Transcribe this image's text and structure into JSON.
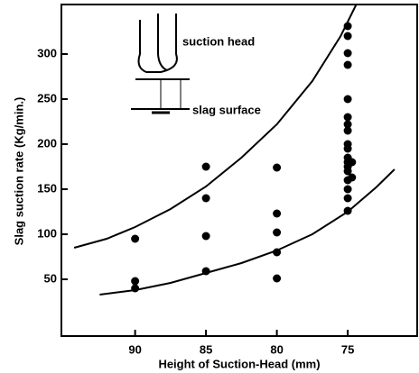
{
  "chart_data": {
    "type": "scatter",
    "x_label": "Height of Suction-Head (mm)",
    "y_label": "Slag suction rate (Kg/min.)",
    "annotations": [
      "suction head",
      "slag surface"
    ],
    "xlim": [
      95.2,
      70.1
    ],
    "xticks": [
      90,
      85,
      80,
      75
    ],
    "ylim": [
      -13,
      355
    ],
    "yticks": [
      50,
      100,
      150,
      200,
      250,
      300
    ],
    "color": "#000000",
    "series": [
      {
        "type": "scatter",
        "x": [
          90,
          90,
          90,
          85,
          85,
          85,
          85,
          80,
          80,
          80,
          80,
          80,
          75,
          75,
          75,
          75,
          75,
          75,
          75,
          75,
          75,
          75,
          75,
          75,
          75,
          75,
          75,
          75,
          75,
          75,
          74.7,
          74.7
        ],
        "values": [
          95,
          48,
          40,
          175,
          140,
          98,
          59,
          174,
          123,
          102,
          80,
          51,
          331,
          320,
          301,
          288,
          250,
          230,
          222,
          215,
          200,
          195,
          185,
          180,
          175,
          170,
          160,
          150,
          140,
          126,
          180,
          163
        ]
      },
      {
        "type": "line",
        "x": [
          94.3,
          92,
          90,
          87.5,
          85,
          82.5,
          80,
          77.5,
          75.5,
          74.4
        ],
        "values": [
          85,
          95,
          108,
          128,
          153,
          185,
          222,
          270,
          320,
          355
        ]
      },
      {
        "type": "line",
        "x": [
          92.5,
          90,
          87.5,
          85,
          82.5,
          80,
          77.5,
          75,
          73,
          71.7
        ],
        "values": [
          33,
          38,
          46,
          57,
          68,
          82,
          100,
          125,
          152,
          172
        ]
      }
    ]
  }
}
